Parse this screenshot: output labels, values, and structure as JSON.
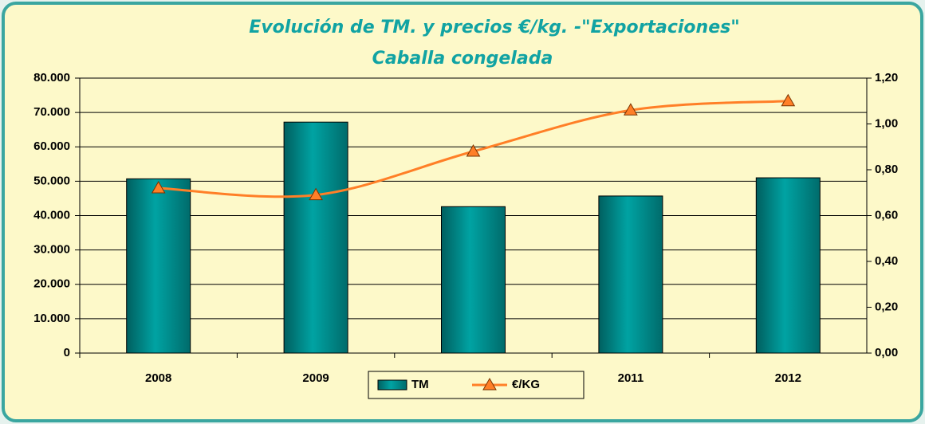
{
  "chart_data": {
    "type": "bar",
    "title": "Evolución de TM. y precios €/kg. -\"Exportaciones\"",
    "subtitle": "Caballa congelada",
    "categories": [
      "2008",
      "2009",
      "2010",
      "2011",
      "2012"
    ],
    "series": [
      {
        "name": "TM",
        "type": "bar",
        "color": "#009999",
        "values": [
          50700,
          67200,
          42600,
          45700,
          51000
        ]
      },
      {
        "name": "€/KG",
        "type": "line",
        "axis": "y2",
        "color": "#ff7f27",
        "values": [
          0.72,
          0.69,
          0.88,
          1.06,
          1.1
        ]
      }
    ],
    "ylim": [
      0,
      80000
    ],
    "yticks": [
      0,
      {
        "value": 10000,
        "label": "10.000"
      },
      {
        "value": 20000,
        "label": "20.000"
      },
      {
        "value": 30000,
        "label": "30.000"
      },
      {
        "value": 40000,
        "label": "40.000"
      },
      {
        "value": 50000,
        "label": "50.000"
      },
      {
        "value": 60000,
        "label": "60.000"
      },
      {
        "value": 70000,
        "label": "70.000"
      },
      {
        "value": 80000,
        "label": "80.000"
      }
    ],
    "y2lim": [
      0,
      1.2
    ],
    "y2ticks": [
      {
        "value": 0,
        "label": "0,00"
      },
      {
        "value": 0.2,
        "label": "0,20"
      },
      {
        "value": 0.4,
        "label": "0,40"
      },
      {
        "value": 0.6,
        "label": "0,60"
      },
      {
        "value": 0.8,
        "label": "0,80"
      },
      {
        "value": 1.0,
        "label": "1,00"
      },
      {
        "value": 1.2,
        "label": "1,20"
      }
    ],
    "grid": true,
    "legend": "bottom"
  }
}
